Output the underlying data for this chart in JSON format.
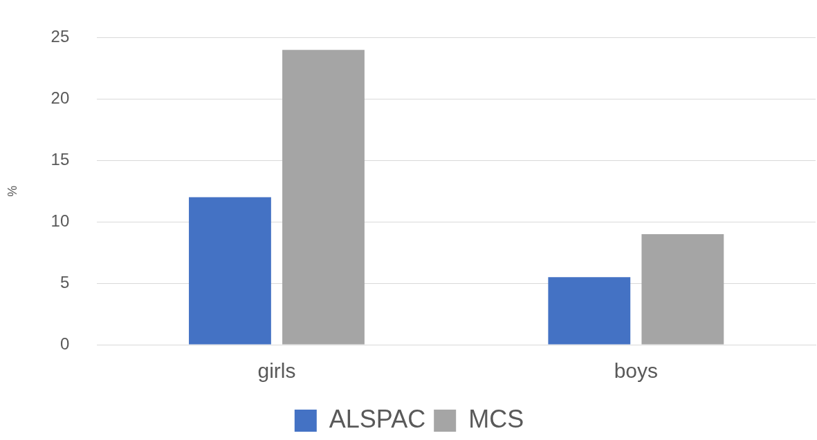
{
  "chart_data": {
    "type": "bar",
    "ylabel": "%",
    "categories": [
      "girls",
      "boys"
    ],
    "series": [
      {
        "name": "ALSPAC",
        "color": "#4472c4",
        "values": [
          12,
          5.5
        ]
      },
      {
        "name": "MCS",
        "color": "#a5a5a5",
        "values": [
          24,
          9
        ]
      }
    ],
    "ylim": [
      0,
      25
    ],
    "yticks": [
      0,
      5,
      10,
      15,
      20,
      25
    ],
    "grid": "y",
    "legend": "bottom"
  }
}
